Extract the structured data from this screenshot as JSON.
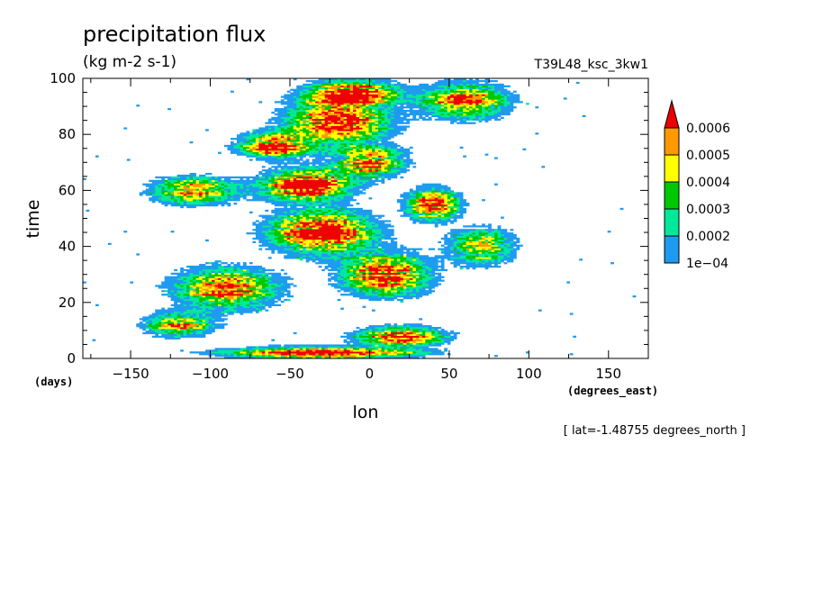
{
  "chart_data": {
    "type": "heatmap",
    "title": "precipitation flux",
    "units": "(kg m-2 s-1)",
    "run_label": "T39L48_ksc_3kw1",
    "xlabel": "lon",
    "ylabel": "time",
    "x_units": "(degrees_east)",
    "y_units": "(days)",
    "xlim": [
      -180,
      175
    ],
    "ylim": [
      0,
      100
    ],
    "x_ticks": [
      -150,
      -100,
      -50,
      0,
      50,
      100,
      150
    ],
    "y_ticks": [
      0,
      20,
      40,
      60,
      80,
      100
    ],
    "footnote": "[ lat=-1.48755 degrees_north ]",
    "colorbar": {
      "levels": [
        "1e-04",
        "0.0002",
        "0.0003",
        "0.0004",
        "0.0005",
        "0.0006"
      ],
      "level_values": [
        0.0001,
        0.0002,
        0.0003,
        0.0004,
        0.0005,
        0.0006
      ],
      "colors": [
        "#1e9bf0",
        "#00e89a",
        "#00c800",
        "#ffff00",
        "#ff9900",
        "#ee0000"
      ],
      "extend": "max"
    },
    "active_regions": [
      {
        "lon": -30,
        "time": 45,
        "lon_width": 60,
        "time_width": 14,
        "peak": 0.0008
      },
      {
        "lon": -40,
        "time": 62,
        "lon_width": 50,
        "time_width": 10,
        "peak": 0.0008
      },
      {
        "lon": -20,
        "time": 85,
        "lon_width": 60,
        "time_width": 16,
        "peak": 0.0007
      },
      {
        "lon": -60,
        "time": 76,
        "lon_width": 40,
        "time_width": 8,
        "peak": 0.0007
      },
      {
        "lon": 10,
        "time": 30,
        "lon_width": 50,
        "time_width": 14,
        "peak": 0.0007
      },
      {
        "lon": -90,
        "time": 25,
        "lon_width": 60,
        "time_width": 14,
        "peak": 0.0006
      },
      {
        "lon": 20,
        "time": 8,
        "lon_width": 50,
        "time_width": 6,
        "peak": 0.0007
      },
      {
        "lon": -30,
        "time": 2,
        "lon_width": 110,
        "time_width": 4,
        "peak": 0.0007
      },
      {
        "lon": 40,
        "time": 55,
        "lon_width": 30,
        "time_width": 10,
        "peak": 0.0007
      },
      {
        "lon": 60,
        "time": 92,
        "lon_width": 50,
        "time_width": 12,
        "peak": 0.0006
      },
      {
        "lon": -110,
        "time": 60,
        "lon_width": 50,
        "time_width": 10,
        "peak": 0.0005
      },
      {
        "lon": -120,
        "time": 12,
        "lon_width": 40,
        "time_width": 8,
        "peak": 0.0005
      },
      {
        "lon": 70,
        "time": 40,
        "lon_width": 40,
        "time_width": 12,
        "peak": 0.0005
      },
      {
        "lon": -10,
        "time": 95,
        "lon_width": 50,
        "time_width": 8,
        "peak": 0.0007
      },
      {
        "lon": 0,
        "time": 70,
        "lon_width": 40,
        "time_width": 10,
        "peak": 0.0006
      }
    ]
  }
}
